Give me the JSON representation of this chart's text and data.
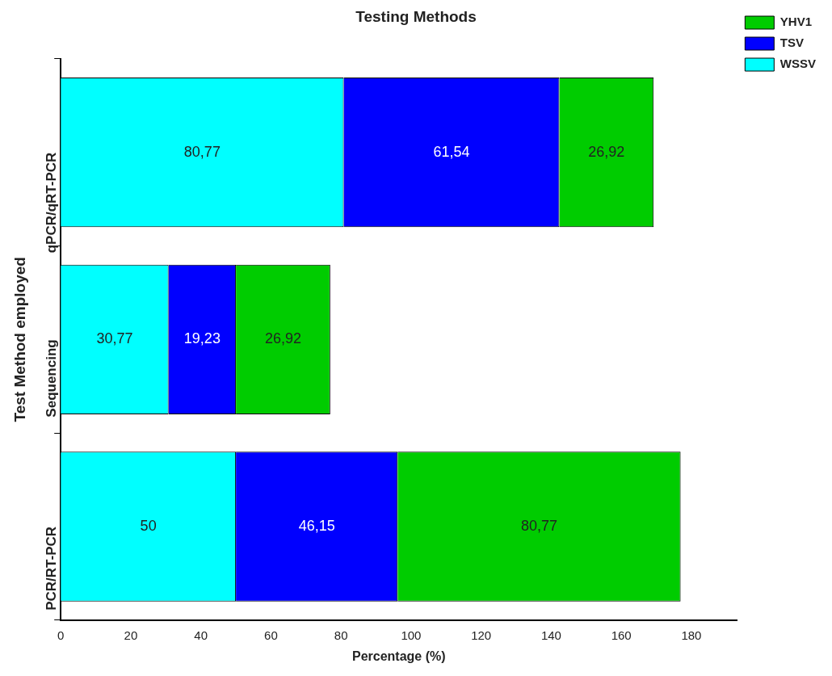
{
  "chart_data": {
    "type": "bar",
    "orientation": "horizontal",
    "stacked": true,
    "title": "Testing Methods",
    "xlabel": "Percentage (%)",
    "ylabel": "Test Method employed",
    "categories": [
      "qPCR/qRT-PCR",
      "Sequencing",
      "PCR/RT-PCR"
    ],
    "series": [
      {
        "name": "WSSV",
        "color": "#00ffff",
        "values": [
          80.77,
          30.77,
          50
        ],
        "value_labels": [
          "80,77",
          "30,77",
          "50"
        ]
      },
      {
        "name": "TSV",
        "color": "#0000ff",
        "values": [
          61.54,
          19.23,
          46.15
        ],
        "value_labels": [
          "61,54",
          "19,23",
          "46,15"
        ]
      },
      {
        "name": "YHV1",
        "color": "#00cc00",
        "values": [
          26.92,
          26.92,
          80.77
        ],
        "value_labels": [
          "26,92",
          "26,92",
          "80,77"
        ]
      }
    ],
    "xlim": [
      0,
      193
    ],
    "xticks": [
      0,
      20,
      40,
      60,
      80,
      100,
      120,
      140,
      160,
      180
    ],
    "grid": false,
    "legend": "top right"
  }
}
